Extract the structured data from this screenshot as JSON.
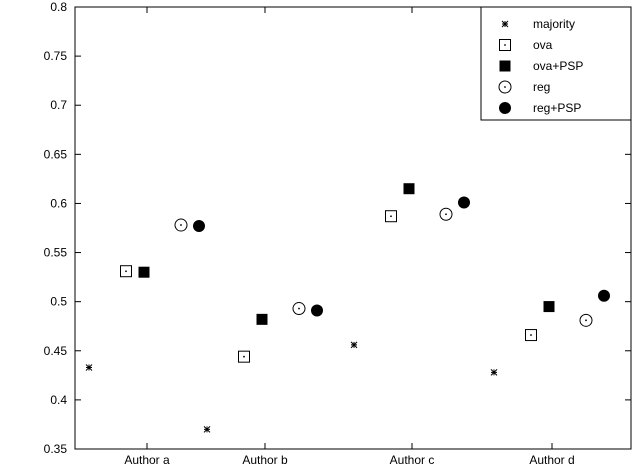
{
  "chart_data": {
    "type": "scatter",
    "categories": [
      "Author a",
      "Author b",
      "Author c",
      "Author d"
    ],
    "ylim": [
      0.35,
      0.8
    ],
    "yticks": [
      0.35,
      0.4,
      0.45,
      0.5,
      0.55,
      0.6,
      0.65,
      0.7,
      0.75,
      0.8
    ],
    "ytick_labels": [
      "0.35",
      "0.4",
      "0.45",
      "0.5",
      "0.55",
      "0.6",
      "0.65",
      "0.7",
      "0.75",
      "0.8"
    ],
    "grid": false,
    "legend_position": "top-right",
    "series": [
      {
        "name": "majority",
        "marker": "asterisk",
        "values": [
          0.433,
          0.37,
          0.456,
          0.428
        ]
      },
      {
        "name": "ova",
        "marker": "square-dot",
        "values": [
          0.531,
          0.444,
          0.587,
          0.466
        ]
      },
      {
        "name": "ova+PSP",
        "marker": "filled-square",
        "values": [
          0.53,
          0.482,
          0.615,
          0.495
        ]
      },
      {
        "name": "reg",
        "marker": "circle-dot",
        "values": [
          0.578,
          0.493,
          0.589,
          0.481
        ]
      },
      {
        "name": "reg+PSP",
        "marker": "filled-circle",
        "values": [
          0.577,
          0.491,
          0.601,
          0.506
        ]
      }
    ]
  }
}
